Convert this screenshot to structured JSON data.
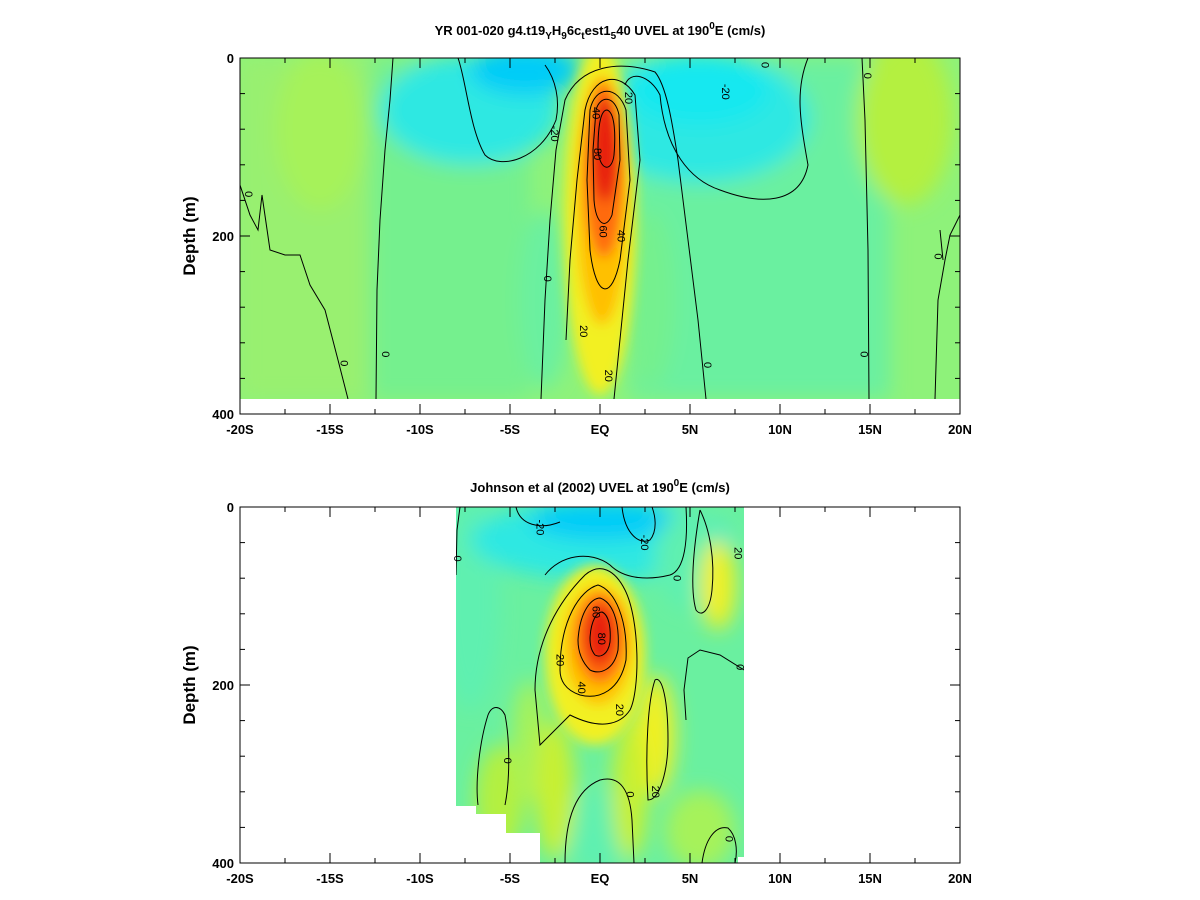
{
  "chart_data": [
    {
      "type": "heatmap",
      "title": "YR 001-020 g4.t19",
      "title_parts": {
        "a": "YR 001-020 g4.t19",
        "sub1": "Y",
        "b": "H",
        "sub2": "9",
        "c": "6c",
        "sub3": "t",
        "d": "est1",
        "sub4": "5",
        "e": "40 UVEL at 190",
        "sup": "0",
        "f": "E (cm/s)"
      },
      "ylabel": "Depth (m)",
      "xlim": [
        -20,
        20
      ],
      "ylim": [
        0,
        400
      ],
      "y_inverted": true,
      "x_ticks": [
        -20,
        -15,
        -10,
        -5,
        0,
        5,
        10,
        15,
        20
      ],
      "x_tick_labels": [
        "-20S",
        "-15S",
        "-10S",
        "-5S",
        "EQ",
        "5N",
        "10N",
        "15N",
        "20N"
      ],
      "y_ticks": [
        0,
        200,
        400
      ],
      "y_tick_labels": [
        "0",
        "200",
        "400"
      ],
      "data_extent": {
        "x": [
          -20,
          20
        ],
        "y": [
          0,
          384
        ]
      },
      "colormap": [
        "#00b8ff",
        "#19e8f0",
        "#6af0a0",
        "#8ef27a",
        "#b4f040",
        "#f2f020",
        "#ffc000",
        "#ff6a10",
        "#e82010"
      ],
      "contour_labels": [
        {
          "x": 9.2,
          "y": 8,
          "text": "0"
        },
        {
          "x": -11.9,
          "y": 333,
          "text": "0"
        },
        {
          "x": -14.2,
          "y": 343,
          "text": "0"
        },
        {
          "x": -19.5,
          "y": 153,
          "text": "0"
        },
        {
          "x": 6.0,
          "y": 345,
          "text": "0"
        },
        {
          "x": 14.7,
          "y": 333,
          "text": "0"
        },
        {
          "x": 18.8,
          "y": 223,
          "text": "0"
        },
        {
          "x": 14.9,
          "y": 20,
          "text": "0"
        },
        {
          "x": -2.5,
          "y": 85,
          "text": "-20"
        },
        {
          "x": -2.9,
          "y": 248,
          "text": "0"
        },
        {
          "x": 1.6,
          "y": 45,
          "text": "20"
        },
        {
          "x": 7.0,
          "y": 38,
          "text": "-20"
        },
        {
          "x": -0.2,
          "y": 62,
          "text": "40"
        },
        {
          "x": -0.1,
          "y": 108,
          "text": "80"
        },
        {
          "x": 0.2,
          "y": 195,
          "text": "60"
        },
        {
          "x": 1.2,
          "y": 200,
          "text": "40"
        },
        {
          "x": -0.9,
          "y": 307,
          "text": "20"
        },
        {
          "x": 0.5,
          "y": 357,
          "text": "20"
        }
      ]
    },
    {
      "type": "heatmap",
      "title": "Johnson et al (2002) UVEL at 190",
      "title_parts": {
        "a": "Johnson et al (2002) UVEL at 190",
        "sup": "0",
        "f": "E (cm/s)"
      },
      "ylabel": "Depth (m)",
      "xlim": [
        -20,
        20
      ],
      "ylim": [
        0,
        400
      ],
      "y_inverted": true,
      "x_ticks": [
        -20,
        -15,
        -10,
        -5,
        0,
        5,
        10,
        15,
        20
      ],
      "x_tick_labels": [
        "-20S",
        "-15S",
        "-10S",
        "-5S",
        "EQ",
        "5N",
        "10N",
        "15N",
        "20N"
      ],
      "y_ticks": [
        0,
        200,
        400
      ],
      "y_tick_labels": [
        "0",
        "200",
        "400"
      ],
      "data_extent": {
        "x": [
          -8,
          8
        ],
        "y": [
          0,
          400
        ]
      },
      "colormap": [
        "#00b8ff",
        "#19e8f0",
        "#6af0a0",
        "#8ef27a",
        "#b4f040",
        "#f2f020",
        "#ffc000",
        "#ff6a10",
        "#e82010"
      ],
      "contour_labels": [
        {
          "x": -3.3,
          "y": 23,
          "text": "-20"
        },
        {
          "x": -7.9,
          "y": 58,
          "text": "0"
        },
        {
          "x": 2.5,
          "y": 40,
          "text": "-20"
        },
        {
          "x": 4.3,
          "y": 80,
          "text": "0"
        },
        {
          "x": 7.7,
          "y": 52,
          "text": "20"
        },
        {
          "x": -0.2,
          "y": 118,
          "text": "60"
        },
        {
          "x": 0.1,
          "y": 148,
          "text": "80"
        },
        {
          "x": -2.2,
          "y": 172,
          "text": "20"
        },
        {
          "x": -1.0,
          "y": 203,
          "text": "40"
        },
        {
          "x": 1.1,
          "y": 228,
          "text": "20"
        },
        {
          "x": -5.1,
          "y": 285,
          "text": "0"
        },
        {
          "x": 1.7,
          "y": 323,
          "text": "0"
        },
        {
          "x": 3.1,
          "y": 320,
          "text": "20"
        },
        {
          "x": 7.8,
          "y": 180,
          "text": "0"
        },
        {
          "x": 7.2,
          "y": 373,
          "text": "0"
        }
      ]
    }
  ]
}
